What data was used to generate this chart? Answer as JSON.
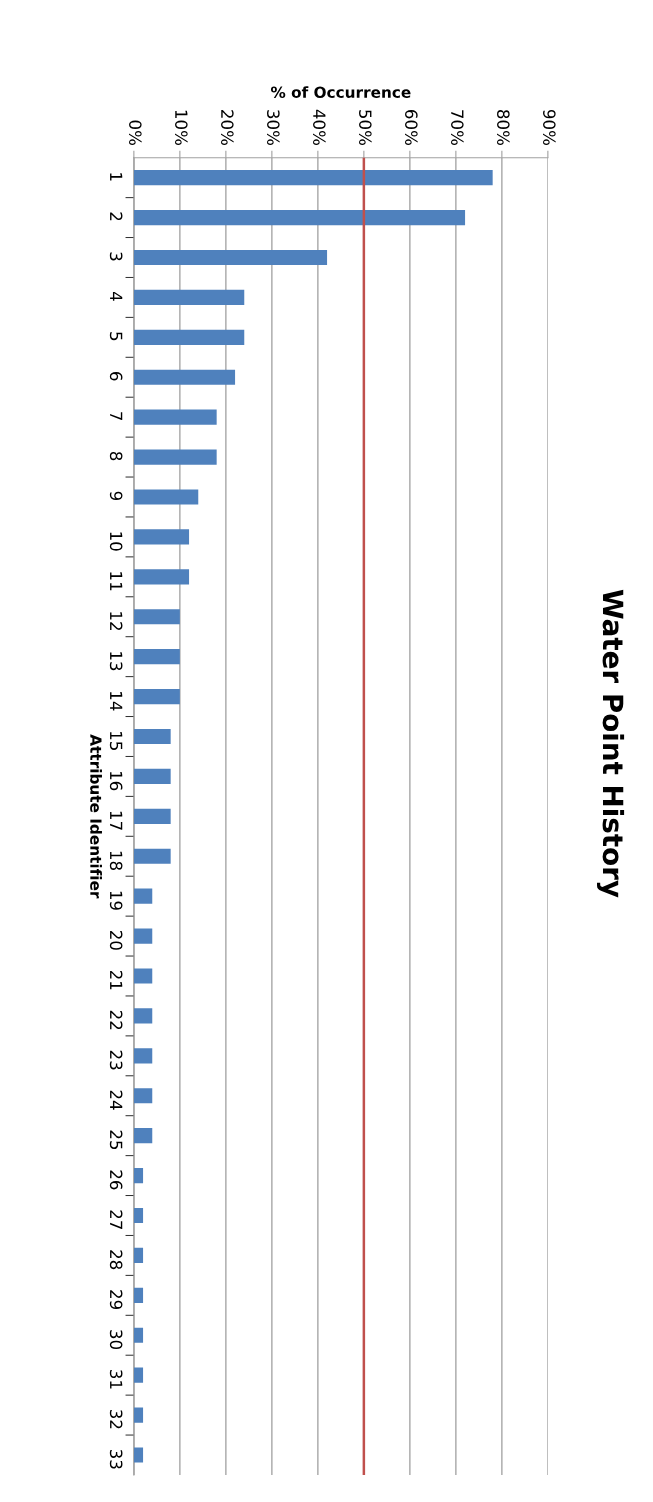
{
  "chart_data": {
    "type": "bar",
    "orientation": "horizontal",
    "title": "Water Point History",
    "xlabel": "% of Occurrence",
    "ylabel": "Attribute Identifier",
    "categories": [
      "1",
      "2",
      "3",
      "4",
      "5",
      "6",
      "7",
      "8",
      "9",
      "10",
      "11",
      "12",
      "13",
      "14",
      "15",
      "16",
      "17",
      "18",
      "19",
      "20",
      "21",
      "22",
      "23",
      "24",
      "25",
      "26",
      "27",
      "28",
      "29",
      "30",
      "31",
      "32",
      "33"
    ],
    "values": [
      78,
      72,
      42,
      24,
      24,
      22,
      18,
      18,
      14,
      12,
      12,
      10,
      10,
      10,
      8,
      8,
      8,
      8,
      4,
      4,
      4,
      4,
      4,
      4,
      4,
      2,
      2,
      2,
      2,
      2,
      2,
      2,
      2
    ],
    "color": "#4f81bd",
    "xlim": [
      0,
      90
    ],
    "xticks": [
      {
        "value": 0,
        "label": "0%"
      },
      {
        "value": 10,
        "label": "10%"
      },
      {
        "value": 20,
        "label": "20%"
      },
      {
        "value": 30,
        "label": "30%"
      },
      {
        "value": 40,
        "label": "40%"
      },
      {
        "value": 50,
        "label": "50%"
      },
      {
        "value": 60,
        "label": "60%"
      },
      {
        "value": 70,
        "label": "70%"
      },
      {
        "value": 80,
        "label": "80%"
      },
      {
        "value": 90,
        "label": "90%"
      }
    ],
    "grid": "x",
    "ref_lines": [
      {
        "axis": "x",
        "value": 50,
        "color": "#c0504d"
      }
    ]
  }
}
